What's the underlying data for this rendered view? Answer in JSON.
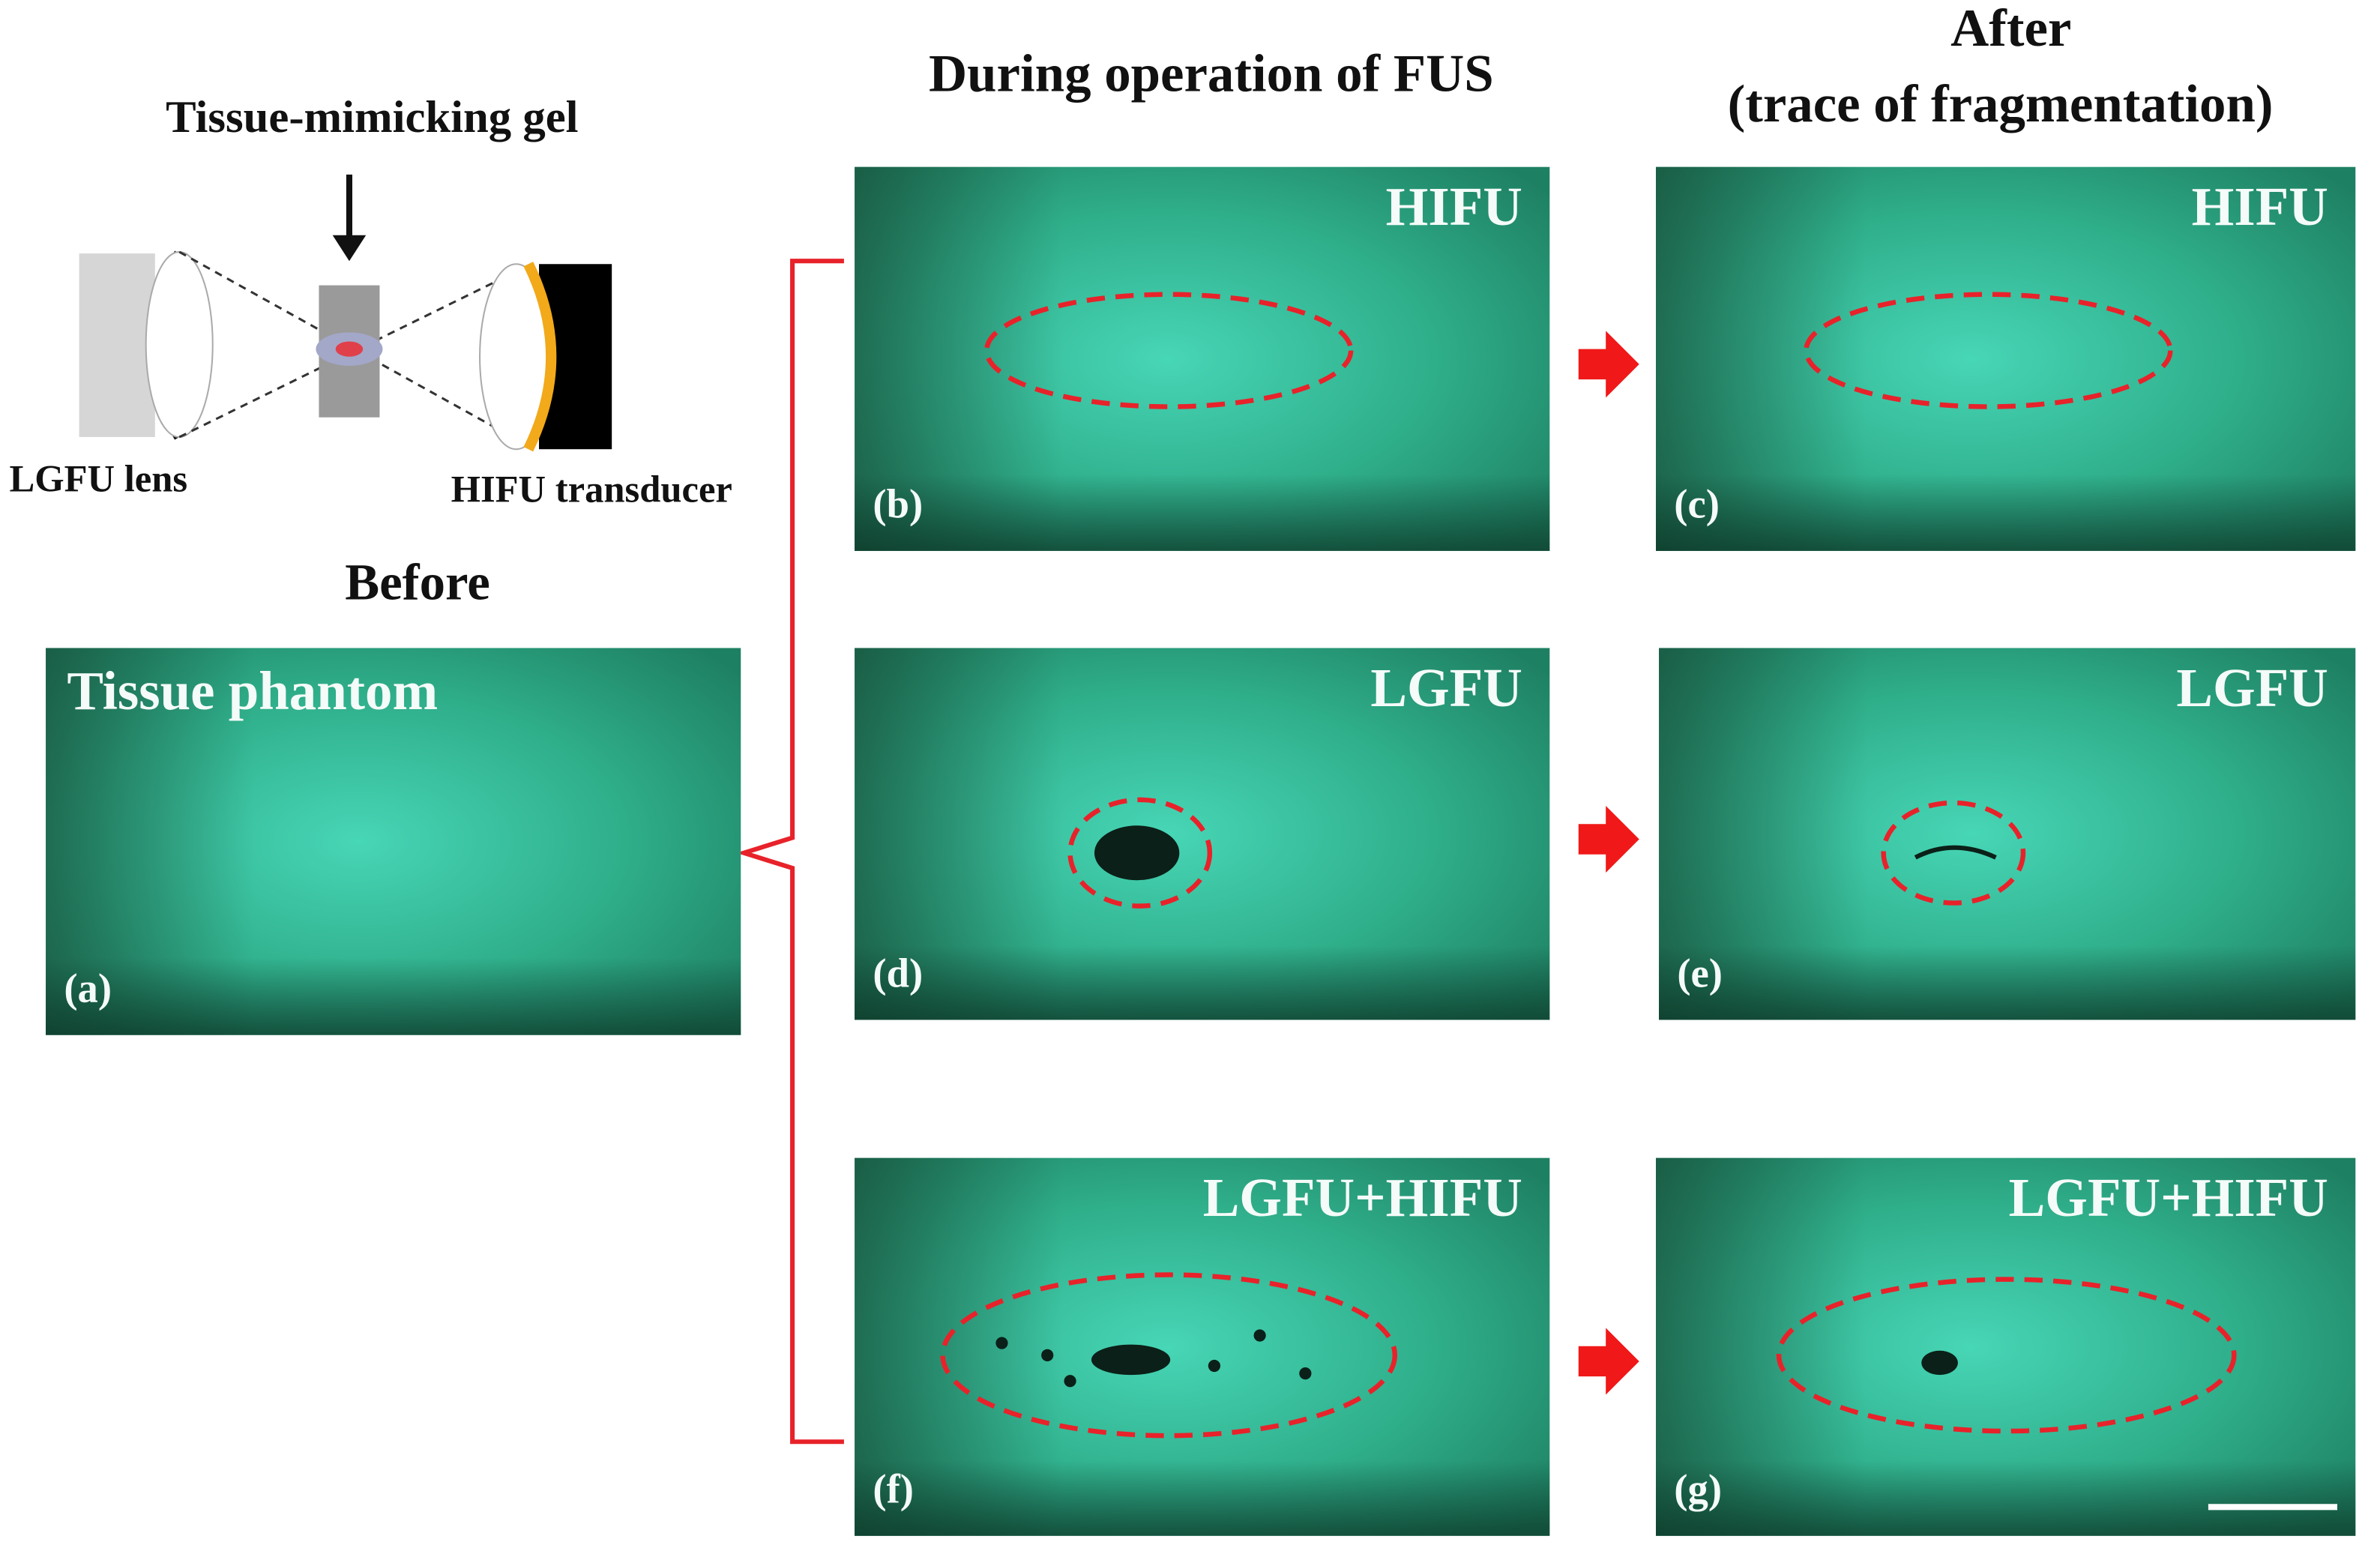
{
  "schematic": {
    "title": "Tissue-mimicking gel",
    "lens_label": "LGFU lens",
    "transducer_label": "HIFU transducer"
  },
  "headers": {
    "before": "Before",
    "during": "During operation of FUS",
    "after": "After",
    "after_sub": "(trace of fragmentation)"
  },
  "panels": [
    {
      "label": "(a)",
      "title": "Tissue phantom"
    },
    {
      "label": "(b)",
      "title": "HIFU"
    },
    {
      "label": "(c)",
      "title": "HIFU"
    },
    {
      "label": "(d)",
      "title": "LGFU"
    },
    {
      "label": "(e)",
      "title": "LGFU"
    },
    {
      "label": "(f)",
      "title": "LGFU+HIFU"
    },
    {
      "label": "(g)",
      "title": "LGFU+HIFU"
    }
  ]
}
